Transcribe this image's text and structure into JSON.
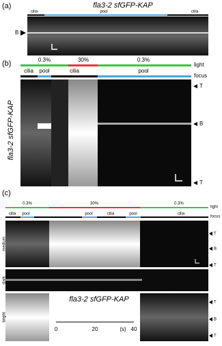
{
  "panel_a": {
    "label": "(a)",
    "title": "fla3-2 sfGFP-KAP",
    "segments": [
      "cilia",
      "pool",
      "cilia"
    ],
    "marker": "B"
  },
  "panel_b": {
    "label": "(b)",
    "light": [
      "0.3%",
      "30%",
      "0.3%"
    ],
    "light_label": "light",
    "focus": [
      "cilia",
      "pool",
      "cilia",
      "pool"
    ],
    "focus_label": "focus",
    "ylabel": "fla3-2 sfGFP-KAP",
    "markers": [
      "T",
      "B",
      "T"
    ]
  },
  "panel_c": {
    "label": "(c)",
    "light": [
      "0.3%",
      "30%",
      "0.3%"
    ],
    "light_label": "light",
    "focus": [
      "cilia",
      "pool",
      "pool",
      "cilia",
      "pool",
      "cilia"
    ],
    "focus_label": "focus",
    "rows": [
      "medium",
      "dark",
      "bright"
    ],
    "markers": [
      "T",
      "B",
      "T",
      "T",
      "B",
      "T"
    ],
    "title": "fla3-2 sfGFP-KAP",
    "scale_ticks": [
      0,
      20,
      40
    ],
    "scale_unit": "(s)"
  }
}
